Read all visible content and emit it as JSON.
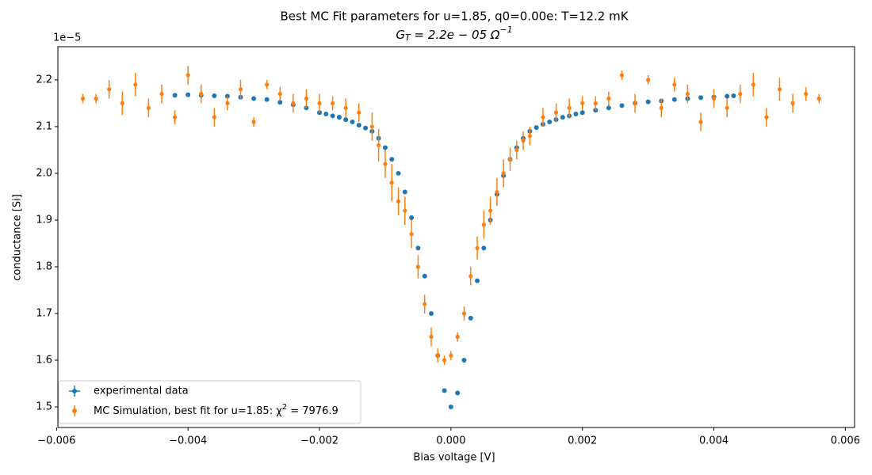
{
  "chart_data": {
    "type": "scatter",
    "title": "Best MC Fit parameters for u=1.85, q0=0.00e:  T=12.2 mK",
    "subtitle_parts": [
      "G",
      "T",
      " = 2.2e − 05 Ω",
      "−1"
    ],
    "x_label": "Bias voltage [V]",
    "y_label": "conductance [Si]",
    "y_offset_label": "1e−5",
    "xlim": [
      -0.00598,
      0.00614
    ],
    "ylim": [
      1.456,
      2.271
    ],
    "xticks": [
      {
        "value": -0.006,
        "label": "−0.006"
      },
      {
        "value": -0.004,
        "label": "−0.004"
      },
      {
        "value": -0.002,
        "label": "−0.002"
      },
      {
        "value": 0,
        "label": "0.000"
      },
      0.002,
      0.004,
      0.006
    ],
    "yticks": [
      1.5,
      1.6,
      1.7,
      1.8,
      1.9,
      {
        "value": 2,
        "label": "2.0"
      },
      2.1,
      2.2
    ],
    "legend_position": "lower left",
    "series": [
      {
        "name": "experimental data",
        "color": "#1f77b4",
        "x": [
          -0.0042,
          -0.004,
          -0.0038,
          -0.0036,
          -0.0034,
          -0.0032,
          -0.003,
          -0.0028,
          -0.0026,
          -0.0024,
          -0.0022,
          -0.002,
          -0.0019,
          -0.0018,
          -0.0017,
          -0.0016,
          -0.0015,
          -0.0014,
          -0.0013,
          -0.0012,
          -0.0011,
          -0.001,
          -0.0009,
          -0.0008,
          -0.0007,
          -0.0006,
          -0.0005,
          -0.0004,
          -0.0003,
          -0.0002,
          -0.0001,
          0,
          0.0001,
          0.0002,
          0.0003,
          0.0004,
          0.0005,
          0.0006,
          0.0007,
          0.0008,
          0.0009,
          0.001,
          0.0011,
          0.0012,
          0.0013,
          0.0014,
          0.0015,
          0.0016,
          0.0017,
          0.0018,
          0.0019,
          0.002,
          0.0022,
          0.0024,
          0.0026,
          0.0028,
          0.003,
          0.0032,
          0.0034,
          0.0036,
          0.0038,
          0.004,
          0.0042,
          0.0043
        ],
        "values": [
          2.167,
          2.168,
          2.167,
          2.166,
          2.165,
          2.163,
          2.16,
          2.158,
          2.152,
          2.147,
          2.14,
          2.13,
          2.127,
          2.123,
          2.12,
          2.115,
          2.11,
          2.103,
          2.097,
          2.09,
          2.075,
          2.055,
          2.03,
          2.0,
          1.96,
          1.905,
          1.84,
          1.78,
          1.7,
          1.61,
          1.535,
          1.5,
          1.53,
          1.6,
          1.69,
          1.77,
          1.84,
          1.9,
          1.955,
          1.995,
          2.03,
          2.055,
          2.075,
          2.09,
          2.098,
          2.105,
          2.11,
          2.115,
          2.12,
          2.123,
          2.127,
          2.13,
          2.135,
          2.14,
          2.145,
          2.15,
          2.153,
          2.155,
          2.158,
          2.16,
          2.162,
          2.163,
          2.165,
          2.166
        ]
      },
      {
        "name_parts": [
          "MC Simulation, best fit for u=1.85:  χ",
          "2",
          " = 7976.9"
        ],
        "color": "#ff7f0e",
        "x": [
          -0.0056,
          -0.0054,
          -0.0052,
          -0.005,
          -0.0048,
          -0.0046,
          -0.0044,
          -0.0042,
          -0.004,
          -0.0038,
          -0.0036,
          -0.0034,
          -0.0032,
          -0.003,
          -0.0028,
          -0.0026,
          -0.0024,
          -0.0022,
          -0.002,
          -0.0018,
          -0.0016,
          -0.0014,
          -0.0012,
          -0.0011,
          -0.001,
          -0.0009,
          -0.0008,
          -0.0007,
          -0.0006,
          -0.0005,
          -0.0004,
          -0.0003,
          -0.0002,
          -0.0001,
          0,
          0.0001,
          0.0002,
          0.0003,
          0.0004,
          0.0005,
          0.0006,
          0.0007,
          0.0008,
          0.0009,
          0.001,
          0.0011,
          0.0012,
          0.0014,
          0.0016,
          0.0018,
          0.002,
          0.0022,
          0.0024,
          0.0026,
          0.0028,
          0.003,
          0.0032,
          0.0034,
          0.0036,
          0.0038,
          0.004,
          0.0042,
          0.0044,
          0.0046,
          0.0048,
          0.005,
          0.0052,
          0.0054,
          0.0056
        ],
        "values": [
          2.16,
          2.16,
          2.18,
          2.15,
          2.19,
          2.14,
          2.17,
          2.12,
          2.21,
          2.17,
          2.12,
          2.15,
          2.18,
          2.11,
          2.19,
          2.17,
          2.15,
          2.16,
          2.15,
          2.15,
          2.14,
          2.13,
          2.1,
          2.06,
          2.02,
          1.98,
          1.94,
          1.92,
          1.87,
          1.8,
          1.72,
          1.65,
          1.61,
          1.6,
          1.61,
          1.65,
          1.7,
          1.78,
          1.84,
          1.89,
          1.92,
          1.96,
          2.0,
          2.03,
          2.05,
          2.07,
          2.08,
          2.12,
          2.13,
          2.14,
          2.15,
          2.15,
          2.16,
          2.21,
          2.15,
          2.2,
          2.14,
          2.19,
          2.17,
          2.11,
          2.16,
          2.14,
          2.17,
          2.19,
          2.12,
          2.18,
          2.15,
          2.17,
          2.16
        ],
        "errors": [
          0.01,
          0.01,
          0.02,
          0.025,
          0.025,
          0.02,
          0.02,
          0.015,
          0.02,
          0.02,
          0.02,
          0.015,
          0.02,
          0.01,
          0.01,
          0.015,
          0.02,
          0.02,
          0.02,
          0.015,
          0.02,
          0.02,
          0.03,
          0.035,
          0.03,
          0.04,
          0.03,
          0.03,
          0.03,
          0.025,
          0.02,
          0.02,
          0.015,
          0.01,
          0.01,
          0.01,
          0.015,
          0.02,
          0.025,
          0.03,
          0.03,
          0.03,
          0.03,
          0.025,
          0.02,
          0.02,
          0.02,
          0.02,
          0.02,
          0.02,
          0.015,
          0.015,
          0.015,
          0.01,
          0.02,
          0.01,
          0.02,
          0.015,
          0.02,
          0.02,
          0.02,
          0.02,
          0.02,
          0.025,
          0.02,
          0.025,
          0.02,
          0.015,
          0.01
        ]
      }
    ]
  }
}
